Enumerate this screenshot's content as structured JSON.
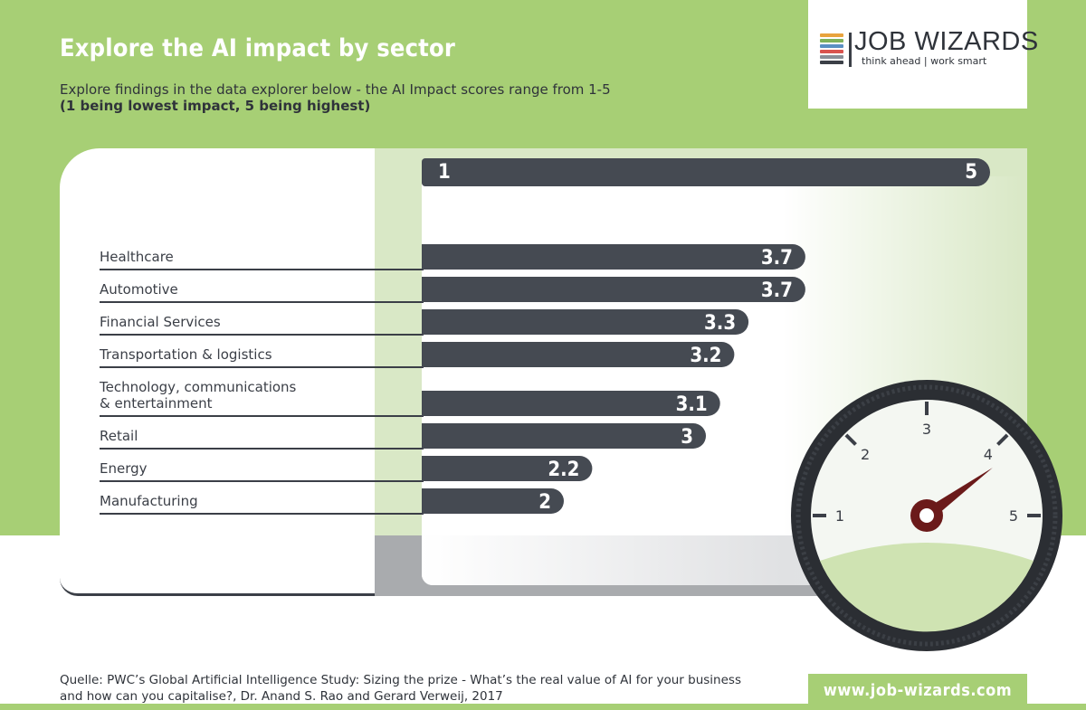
{
  "title": "Explore the AI impact by sector",
  "subtitle": "Explore findings in the data explorer below - the AI Impact scores range from 1-5",
  "subtitle_bold": "(1 being lowest impact, 5 being highest)",
  "logo": {
    "name": "JOB WIZARDS",
    "tagline": "think ahead | work smart",
    "stripe_colors": [
      "#e8a33d",
      "#7fb15a",
      "#5a8fc2",
      "#d9534f",
      "#8a8f98",
      "#3b3f47"
    ]
  },
  "colors": {
    "background_green": "#a7cf75",
    "bar": "#454a52",
    "gauge_needle": "#6b1a1a"
  },
  "chart_data": {
    "type": "bar",
    "orientation": "horizontal",
    "categories": [
      "Healthcare",
      "Automotive",
      "Financial Services",
      "Transportation & logistics",
      "Technology, communications & entertainment",
      "Retail",
      "Energy",
      "Manufacturing"
    ],
    "category_lines": [
      [
        "Healthcare"
      ],
      [
        "Automotive"
      ],
      [
        "Financial Services"
      ],
      [
        "Transportation & logistics"
      ],
      [
        "Technology, communications",
        "& entertainment"
      ],
      [
        "Retail"
      ],
      [
        "Energy"
      ],
      [
        "Manufacturing"
      ]
    ],
    "values": [
      3.7,
      3.7,
      3.3,
      3.2,
      3.1,
      3,
      2.2,
      2
    ],
    "value_labels": [
      "3.7",
      "3.7",
      "3.3",
      "3.2",
      "3.1",
      "3",
      "2.2",
      "2"
    ],
    "xlim": [
      1,
      5
    ],
    "scale_min_label": "1",
    "scale_max_label": "5",
    "grid": false,
    "legend": "none"
  },
  "gauge": {
    "numbers": [
      "1",
      "2",
      "3",
      "4",
      "5"
    ],
    "needle_value": 4.2
  },
  "source": {
    "line1": "Quelle: PWC’s Global Artificial Intelligence Study: Sizing the prize - What’s the real value of AI for your business",
    "line2": "and how can you capitalise?, Dr. Anand S. Rao and Gerard Verweij, 2017"
  },
  "url": "www.job-wizards.com"
}
